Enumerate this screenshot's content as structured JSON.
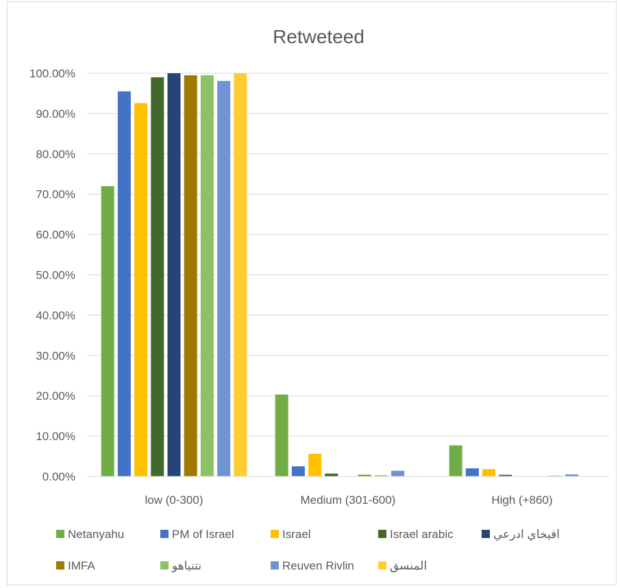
{
  "chart_data": {
    "type": "bar",
    "title": "Retweteed",
    "xlabel": "",
    "ylabel": "",
    "ylim": [
      0,
      1
    ],
    "yticks": [
      "0.00%",
      "10.00%",
      "20.00%",
      "30.00%",
      "40.00%",
      "50.00%",
      "60.00%",
      "70.00%",
      "80.00%",
      "90.00%",
      "100.00%"
    ],
    "grid": true,
    "legend_position": "bottom",
    "categories": [
      "low (0-300)",
      "Medium (301-600)",
      "High (+860)"
    ],
    "series": [
      {
        "name": "Netanyahu",
        "color": "#70ad47",
        "values": [
          0.72,
          0.203,
          0.077
        ]
      },
      {
        "name": "PM of Israel",
        "color": "#4472c4",
        "values": [
          0.955,
          0.025,
          0.02
        ]
      },
      {
        "name": "Israel",
        "color": "#ffc000",
        "values": [
          0.926,
          0.056,
          0.018
        ]
      },
      {
        "name": "Israel arabic",
        "color": "#43682b",
        "values": [
          0.99,
          0.007,
          0.004
        ]
      },
      {
        "name": "افيخاي ادرعي",
        "color": "#264478",
        "values": [
          1.0,
          0.0,
          0.0
        ]
      },
      {
        "name": "IMFA",
        "color": "#9e7a00",
        "values": [
          0.995,
          0.004,
          0.001
        ]
      },
      {
        "name": "نتنياهو",
        "color": "#8cc168",
        "values": [
          0.995,
          0.003,
          0.002
        ]
      },
      {
        "name": "Reuven Rivlin",
        "color": "#6f94d4",
        "values": [
          0.981,
          0.014,
          0.005
        ]
      },
      {
        "name": "المنسق",
        "color": "#ffcd33",
        "values": [
          1.0,
          0.0,
          0.0
        ]
      }
    ]
  }
}
